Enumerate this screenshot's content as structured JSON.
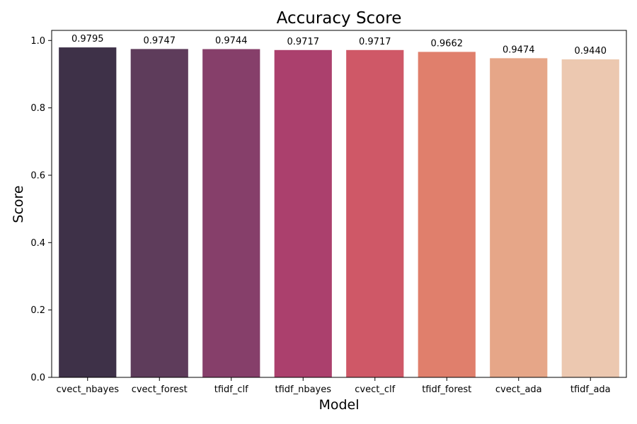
{
  "chart_data": {
    "type": "bar",
    "title": "Accuracy Score",
    "xlabel": "Model",
    "ylabel": "Score",
    "categories": [
      "cvect_nbayes",
      "cvect_forest",
      "tfidf_clf",
      "tfidf_nbayes",
      "cvect_clf",
      "tfidf_forest",
      "cvect_ada",
      "tfidf_ada"
    ],
    "values": [
      0.9795,
      0.9747,
      0.9744,
      0.9717,
      0.9717,
      0.9662,
      0.9474,
      0.944
    ],
    "value_labels": [
      "0.9795",
      "0.9747",
      "0.9744",
      "0.9717",
      "0.9717",
      "0.9662",
      "0.9474",
      "0.9440"
    ],
    "colors": [
      "#3e3148",
      "#5e3c5b",
      "#863f6a",
      "#ab406d",
      "#cf5867",
      "#e07f6c",
      "#e6a688",
      "#ecc8b0"
    ],
    "ylim": [
      0,
      1.03
    ],
    "yticks": [
      0.0,
      0.2,
      0.4,
      0.6,
      0.8,
      1.0
    ],
    "ytick_labels": [
      "0.0",
      "0.2",
      "0.4",
      "0.6",
      "0.8",
      "1.0"
    ],
    "grid": false,
    "legend": "none"
  }
}
